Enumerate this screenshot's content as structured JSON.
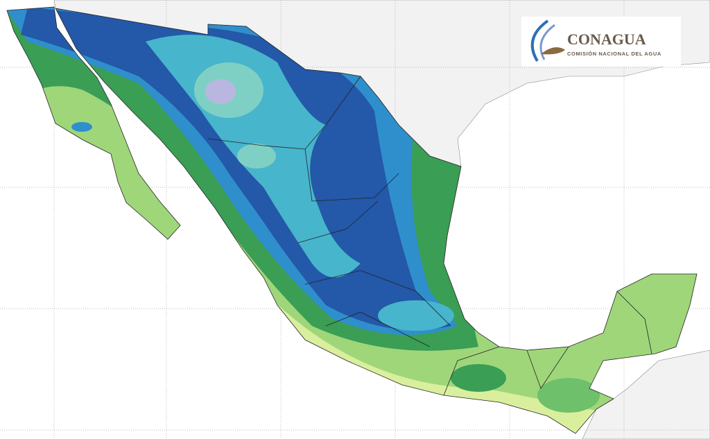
{
  "logo": {
    "title": "CONAGUA",
    "subtitle": "COMISIÓN NACIONAL DEL AGUA"
  }
}
